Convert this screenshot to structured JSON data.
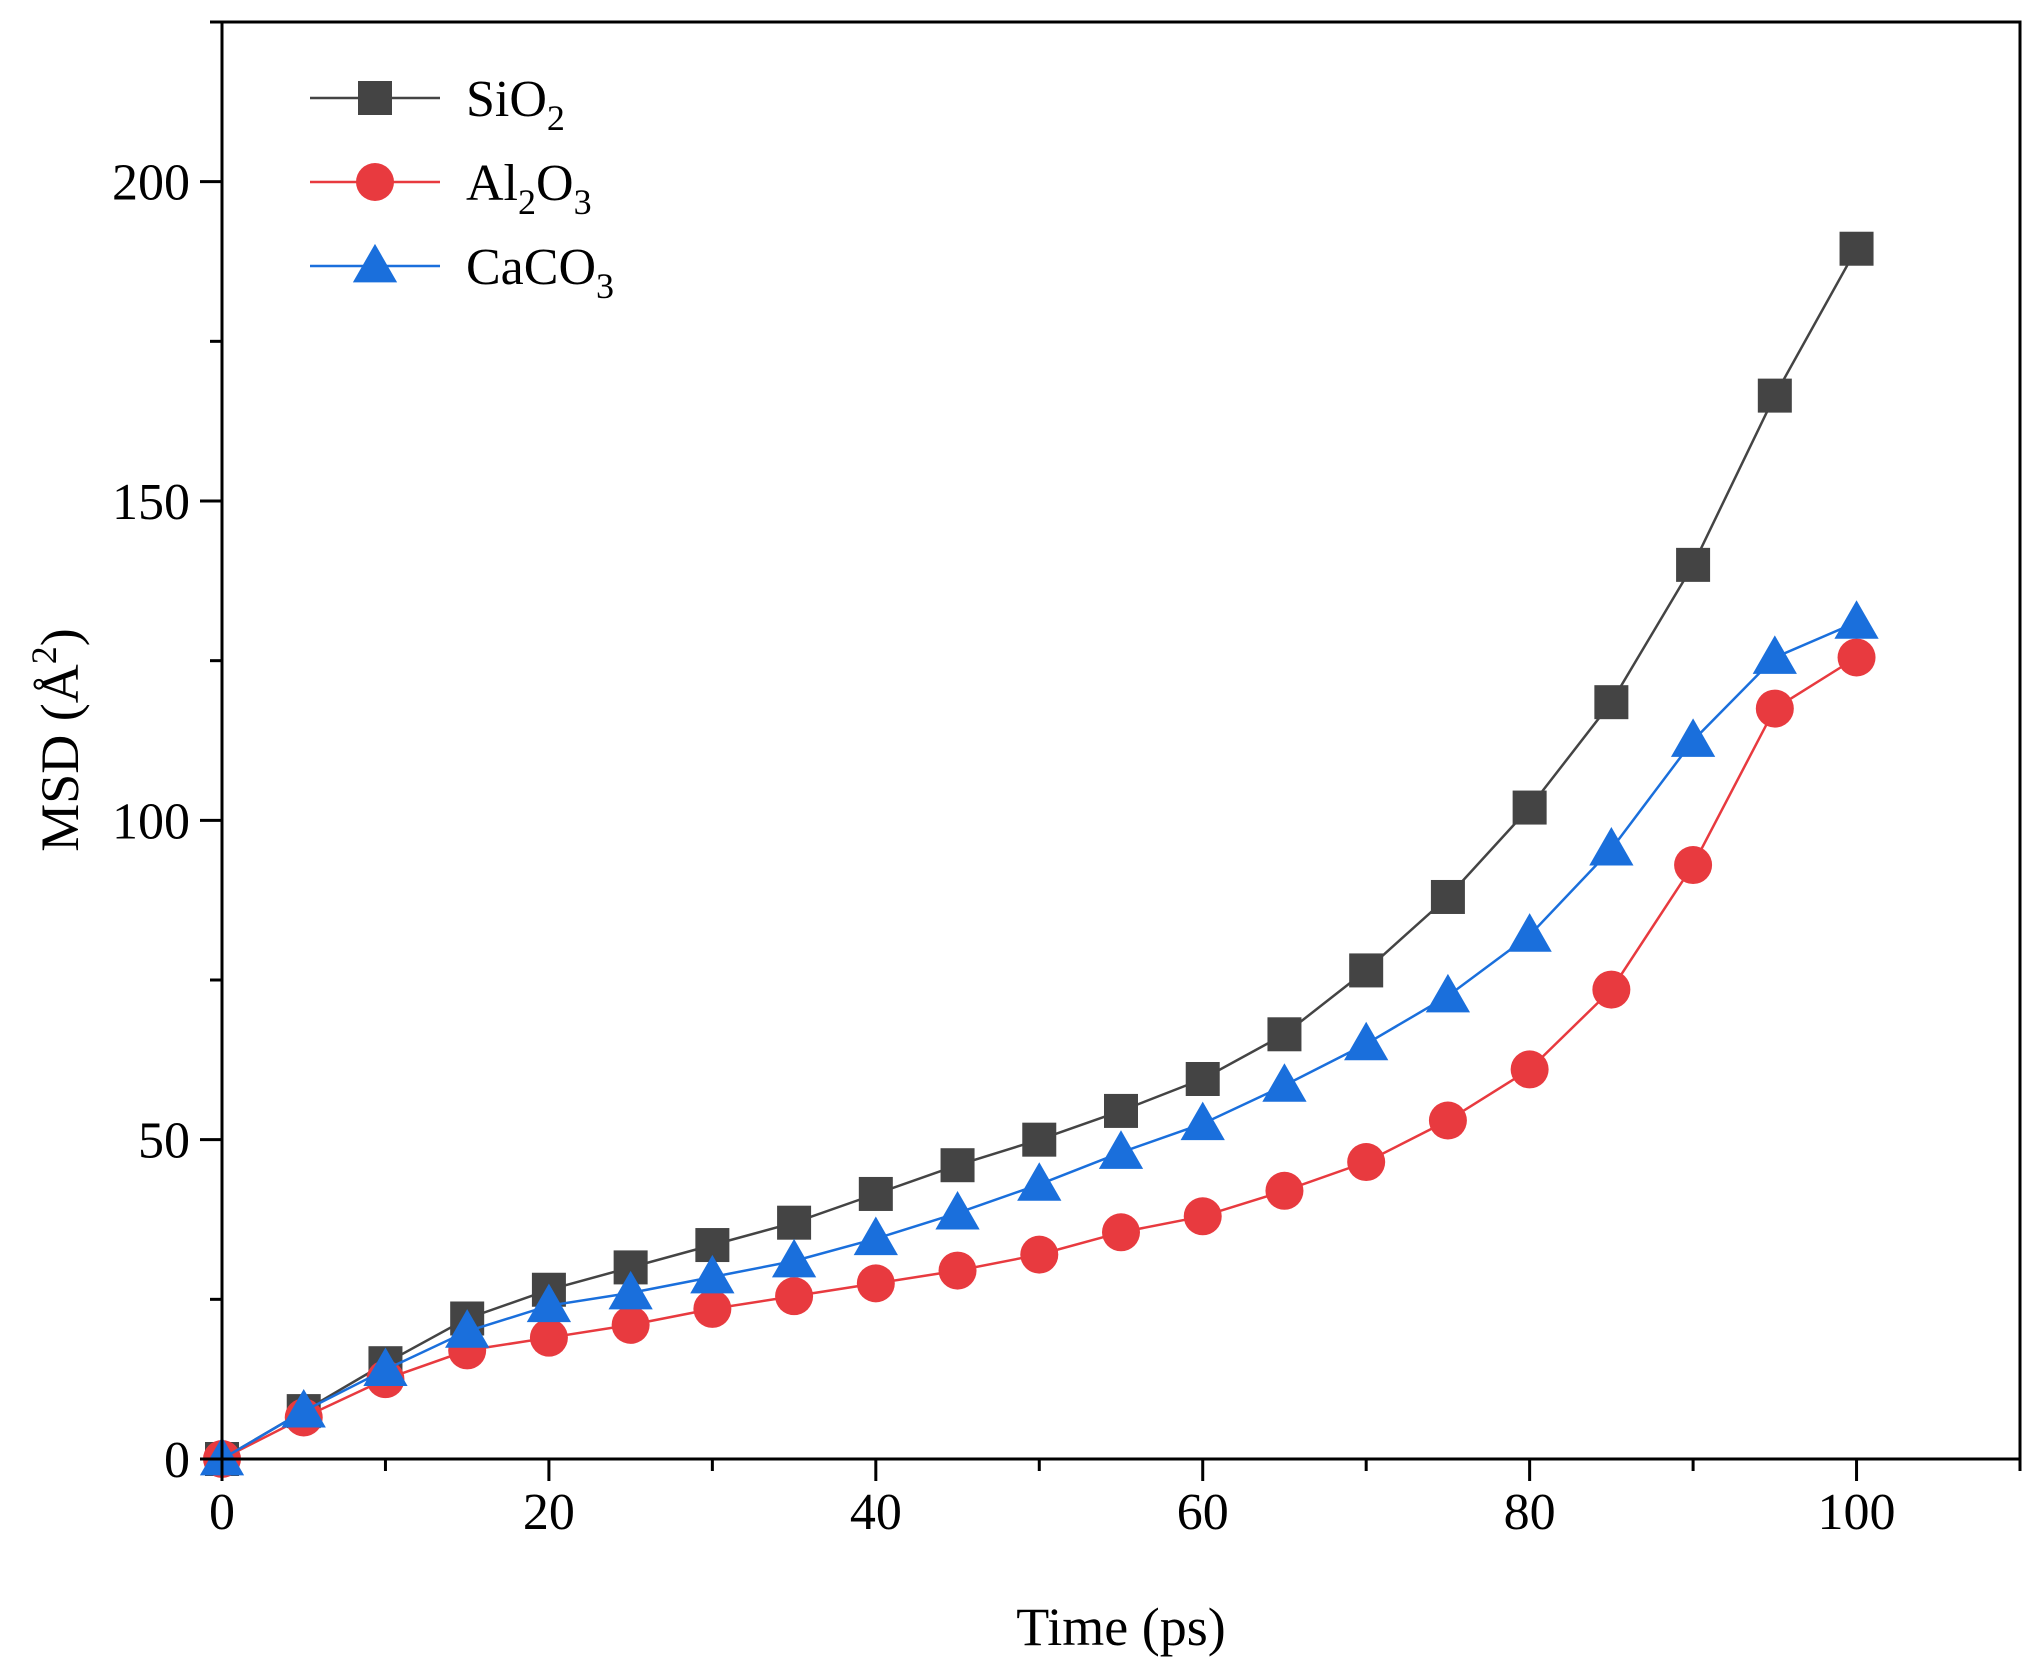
{
  "chart_data": {
    "type": "line",
    "xlabel": "Time (ps)",
    "ylabel": {
      "main": "MSD (Å",
      "sup": "2",
      "end": ")"
    },
    "xlim": [
      0,
      110
    ],
    "ylim": [
      0,
      225
    ],
    "xticks": [
      0,
      20,
      40,
      60,
      80,
      100
    ],
    "yticks": [
      0,
      50,
      100,
      150,
      200
    ],
    "grid": false,
    "legend_position": "top-left",
    "x": [
      0,
      5,
      10,
      15,
      20,
      25,
      30,
      35,
      40,
      45,
      50,
      55,
      60,
      65,
      70,
      75,
      80,
      85,
      90,
      95,
      100
    ],
    "series": [
      {
        "name": {
          "parts": [
            {
              "t": "SiO",
              "sub": false
            },
            {
              "t": "2",
              "sub": true
            }
          ]
        },
        "color": "#444444",
        "marker": "square",
        "values": [
          0,
          7.5,
          15,
          22,
          26.5,
          30,
          33.5,
          37,
          41.5,
          46,
          50,
          54.5,
          59.5,
          66.5,
          76.5,
          88,
          102,
          118.5,
          140,
          166.5,
          189.5
        ]
      },
      {
        "name": {
          "parts": [
            {
              "t": "Al",
              "sub": false
            },
            {
              "t": "2",
              "sub": true
            },
            {
              "t": "O",
              "sub": false
            },
            {
              "t": "3",
              "sub": true
            }
          ]
        },
        "color": "#e83a3f",
        "marker": "circle",
        "values": [
          0,
          6.5,
          12.5,
          17,
          19,
          21,
          23.5,
          25.5,
          27.5,
          29.5,
          32,
          35.5,
          38,
          42,
          46.5,
          53,
          61,
          73.5,
          93,
          117.5,
          125.5
        ]
      },
      {
        "name": {
          "parts": [
            {
              "t": "CaCO",
              "sub": false
            },
            {
              "t": "3",
              "sub": true
            }
          ]
        },
        "color": "#1a6fdc",
        "marker": "triangle",
        "values": [
          0,
          7.5,
          14,
          20,
          24,
          26,
          28.5,
          31,
          34.5,
          38.5,
          43,
          48,
          52.5,
          58.5,
          65,
          72.5,
          82,
          95.5,
          112.5,
          125.5,
          131
        ]
      }
    ]
  }
}
